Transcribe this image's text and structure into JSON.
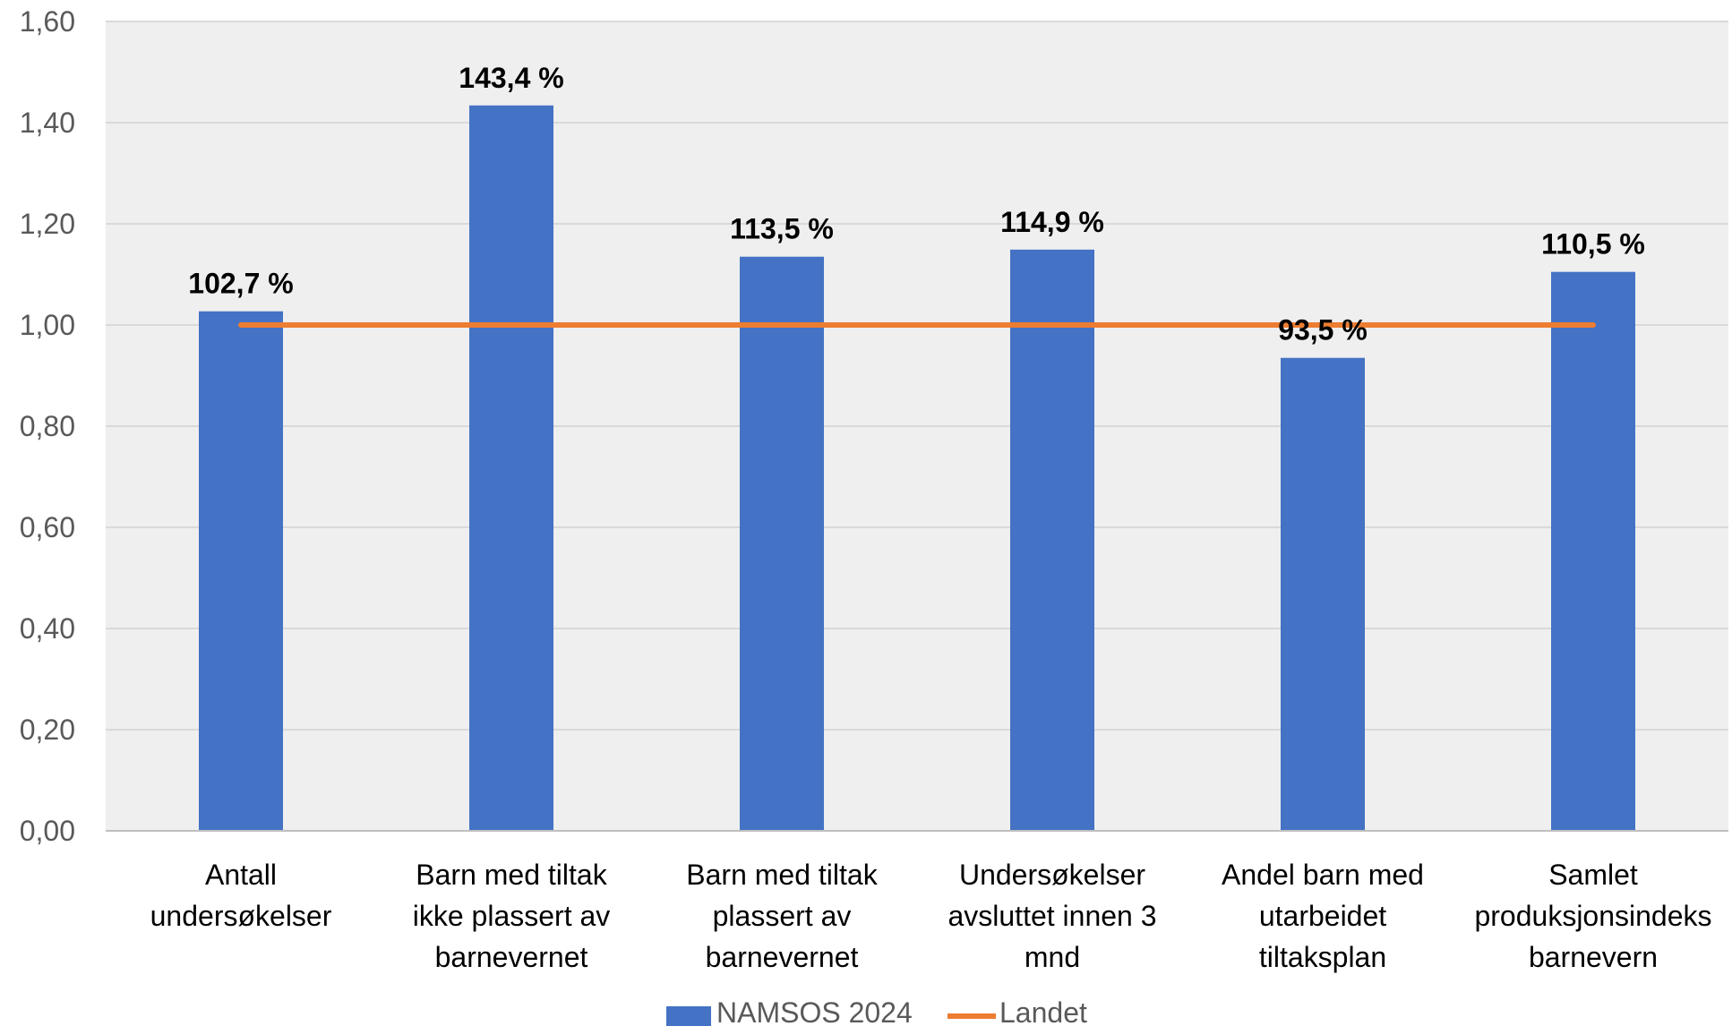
{
  "chart_data": {
    "type": "bar",
    "categories": [
      [
        "Antall",
        "undersøkelser"
      ],
      [
        "Barn med tiltak",
        "ikke plassert av",
        "barnevernet"
      ],
      [
        "Barn med tiltak",
        "plassert av",
        "barnevernet"
      ],
      [
        "Undersøkelser",
        "avsluttet innen 3",
        "mnd"
      ],
      [
        "Andel barn med",
        "utarbeidet",
        "tiltaksplan"
      ],
      [
        "Samlet",
        "produksjonsindeks",
        "barnevern"
      ]
    ],
    "series": [
      {
        "name": "NAMSOS 2024",
        "kind": "bar",
        "color": "#4472C4",
        "values": [
          1.027,
          1.434,
          1.135,
          1.149,
          0.935,
          1.105
        ],
        "data_labels": [
          "102,7 %",
          "143,4 %",
          "113,5 %",
          "114,9 %",
          "93,5 %",
          "110,5 %"
        ]
      },
      {
        "name": "Landet",
        "kind": "line",
        "color": "#ED7D31",
        "values": [
          1.0,
          1.0,
          1.0,
          1.0,
          1.0,
          1.0
        ]
      }
    ],
    "y_ticks": [
      "0,00",
      "0,20",
      "0,40",
      "0,60",
      "0,80",
      "1,00",
      "1,20",
      "1,40",
      "1,60"
    ],
    "ylim": [
      0,
      1.6
    ],
    "grid": true,
    "legend_position": "bottom",
    "plot_background": "#EFEFEF",
    "gridline_color": "#D9D9D9"
  }
}
